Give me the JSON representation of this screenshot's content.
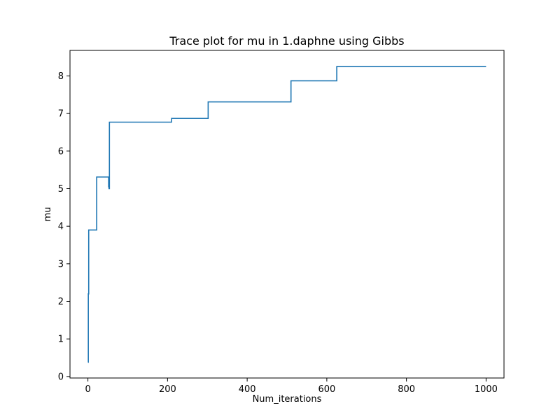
{
  "chart_data": {
    "type": "line",
    "title": "Trace plot for mu in 1.daphne using Gibbs",
    "xlabel": "Num_iterations",
    "ylabel": "mu",
    "xlim": [
      -45,
      1045
    ],
    "ylim": [
      -0.04,
      8.68
    ],
    "x_ticks": [
      0,
      200,
      400,
      600,
      800,
      1000
    ],
    "x_tick_labels": [
      "0",
      "200",
      "400",
      "600",
      "800",
      "1000"
    ],
    "y_ticks": [
      0,
      1,
      2,
      3,
      4,
      5,
      6,
      7,
      8
    ],
    "y_tick_labels": [
      "0",
      "1",
      "2",
      "3",
      "4",
      "5",
      "6",
      "7",
      "8"
    ],
    "grid": false,
    "legend": "none",
    "series": [
      {
        "color": "#1f77b4",
        "x": [
          0,
          1,
          1,
          2,
          2,
          3,
          3,
          22,
          22,
          52,
          52,
          53,
          53,
          54,
          54,
          55,
          55,
          210,
          210,
          302,
          302,
          510,
          510,
          625,
          625,
          1000
        ],
        "y": [
          0.38,
          0.38,
          2.2,
          2.2,
          3.9,
          3.9,
          3.9,
          3.9,
          5.31,
          5.31,
          5.05,
          5.05,
          5.0,
          5.0,
          6.77,
          6.77,
          6.77,
          6.77,
          6.87,
          6.87,
          7.31,
          7.31,
          7.87,
          7.87,
          8.25,
          8.25
        ]
      }
    ]
  }
}
